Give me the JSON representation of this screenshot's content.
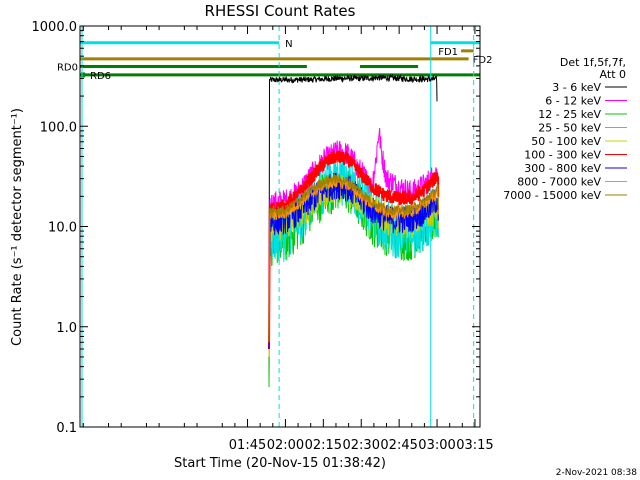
{
  "chart_data": {
    "type": "line",
    "title": "RHESSI Count Rates",
    "xlabel": "Start Time (20-Nov-15 01:38:42)",
    "ylabel": "Count Rate (s⁻¹ detector segment⁻¹)",
    "y_scale": "log",
    "ylim": [
      0.1,
      1000
    ],
    "xlim_minutes": [
      38.7,
      197
    ],
    "x_ticks": [
      {
        "min": 105,
        "label": "01:45"
      },
      {
        "min": 120,
        "label": "02:00"
      },
      {
        "min": 135,
        "label": "02:15"
      },
      {
        "min": 150,
        "label": "02:30"
      },
      {
        "min": 165,
        "label": "02:45"
      },
      {
        "min": 180,
        "label": "03:00"
      },
      {
        "min": 195,
        "label": "03:15"
      }
    ],
    "y_ticks": [
      {
        "value": 0.1,
        "label": "0.1"
      },
      {
        "value": 1,
        "label": "1.0"
      },
      {
        "value": 10,
        "label": "10.0"
      },
      {
        "value": 100,
        "label": "100.0"
      },
      {
        "value": 1000,
        "label": "1000.0"
      }
    ],
    "legend": {
      "placement": "right",
      "header": [
        "Det 1f,5f,7f,",
        "Att 0"
      ],
      "entries": [
        "3 - 6 keV",
        "6 - 12 keV",
        "12 - 25 keV",
        "25 - 50 keV",
        "50 - 100 keV",
        "100 - 300 keV",
        "300 - 800 keV",
        "800 - 7000 keV",
        "7000 - 15000 keV"
      ]
    },
    "series": [
      {
        "name": "3 - 6 keV",
        "color": "#000000",
        "x": [
          113.5,
          113.7,
          120,
          130,
          140,
          150,
          158,
          165,
          172,
          180
        ],
        "y": [
          0.3,
          290,
          290,
          292,
          300,
          300,
          305,
          300,
          295,
          295
        ]
      },
      {
        "name": "6 - 12 keV",
        "color": "#ff00ff",
        "x": [
          113.5,
          113.8,
          120,
          125,
          130,
          135,
          140,
          142,
          145,
          150,
          154,
          155.5,
          157,
          158,
          160,
          165,
          170,
          175,
          180.5
        ],
        "y": [
          0.5,
          17,
          18,
          22,
          32,
          45,
          55,
          56,
          52,
          35,
          25,
          40,
          90,
          55,
          30,
          25,
          22,
          26,
          36
        ]
      },
      {
        "name": "12 - 25 keV",
        "color": "#00c800",
        "x": [
          113.5,
          113.8,
          120,
          125,
          130,
          135,
          140,
          145,
          150,
          155,
          160,
          165,
          170,
          175,
          180.5
        ],
        "y": [
          0.25,
          7,
          7.5,
          10,
          15,
          21,
          25,
          23,
          16,
          11,
          9,
          8,
          8,
          10,
          13
        ]
      },
      {
        "name": "25 - 50 keV",
        "color": "#00e0e0",
        "x": [
          113.5,
          113.8,
          120,
          125,
          130,
          135,
          140,
          145,
          150,
          155,
          160,
          165,
          170,
          175,
          180.5
        ],
        "y": [
          0.6,
          8,
          8.5,
          12,
          18,
          26,
          32,
          29,
          20,
          13,
          10,
          9,
          9,
          11,
          14
        ]
      },
      {
        "name": "50 - 100 keV",
        "color": "#d0d000",
        "x": [
          113.5,
          113.8,
          120,
          125,
          130,
          135,
          140,
          145,
          150,
          155,
          160,
          165,
          170,
          175,
          180.5
        ],
        "y": [
          0.5,
          10,
          10.5,
          13,
          17,
          22,
          25,
          23,
          18,
          14,
          12,
          11,
          11,
          13,
          16
        ]
      },
      {
        "name": "100 - 300 keV",
        "color": "#ff0000",
        "x": [
          113.5,
          113.8,
          120,
          125,
          130,
          135,
          140,
          145,
          150,
          155,
          160,
          165,
          170,
          175,
          180.5
        ],
        "y": [
          0.6,
          15,
          16,
          21,
          30,
          42,
          50,
          46,
          33,
          24,
          20,
          19,
          19,
          23,
          33
        ]
      },
      {
        "name": "300 - 800 keV",
        "color": "#0000ff",
        "x": [
          113.5,
          113.8,
          120,
          125,
          130,
          135,
          140,
          145,
          150,
          155,
          160,
          165,
          170,
          175,
          180.5
        ],
        "y": [
          0.6,
          11,
          11.5,
          14,
          18,
          23,
          26,
          24,
          18,
          14,
          12,
          11.5,
          12,
          14,
          19
        ]
      },
      {
        "name": "800 - 7000 keV",
        "color": "#ff9000",
        "x": [
          113.5,
          113.8,
          120,
          125,
          130,
          135,
          140,
          145,
          150,
          155,
          160,
          165,
          170,
          175,
          180.5
        ],
        "y": [
          0.7,
          13,
          13.5,
          17,
          21,
          26,
          28,
          26,
          20,
          16,
          14,
          13.5,
          14,
          17,
          22
        ]
      },
      {
        "name": "7000 - 15000 keV",
        "color": "#a08000",
        "x": [
          113.5,
          113.8,
          120,
          125,
          130,
          135,
          140,
          145,
          150,
          155,
          160,
          165,
          170,
          175,
          180.5
        ],
        "y": [
          0.7,
          14,
          14.5,
          18,
          23,
          28,
          30,
          28,
          22,
          17,
          15,
          14.5,
          15,
          18,
          24
        ]
      }
    ],
    "vertical_lines": [
      {
        "min": 39.5,
        "style": "solid",
        "color": "#00e0e0"
      },
      {
        "min": 117.5,
        "style": "dashed",
        "color": "#00e0e0"
      },
      {
        "min": 177.5,
        "style": "solid",
        "color": "#00e0e0"
      },
      {
        "min": 194.5,
        "style": "dashed",
        "color": "#00e0e0"
      }
    ],
    "flag_bars": [
      {
        "label": "N",
        "color": "#00e0e0",
        "start": 38.7,
        "end": 117.5,
        "value": 680
      },
      {
        "label": "",
        "color": "#00e0e0",
        "start": 177.5,
        "end": 197,
        "value": 680
      },
      {
        "label": "FD1",
        "color": "#a08000",
        "start": 189.5,
        "end": 194.5,
        "value": 565
      },
      {
        "label": "FD2",
        "color": "#a08000",
        "start": 38.7,
        "end": 192.5,
        "value": 470
      },
      {
        "label": "RD0",
        "color": "#008000",
        "start": 38.7,
        "end": 128.5,
        "value": 395
      },
      {
        "label": "",
        "color": "#008000",
        "start": 149.5,
        "end": 172.5,
        "value": 395
      },
      {
        "label": "RD6",
        "color": "#008000",
        "start": 38.7,
        "end": 197,
        "value": 325
      }
    ],
    "footer_timestamp": "2-Nov-2021 08:38"
  }
}
